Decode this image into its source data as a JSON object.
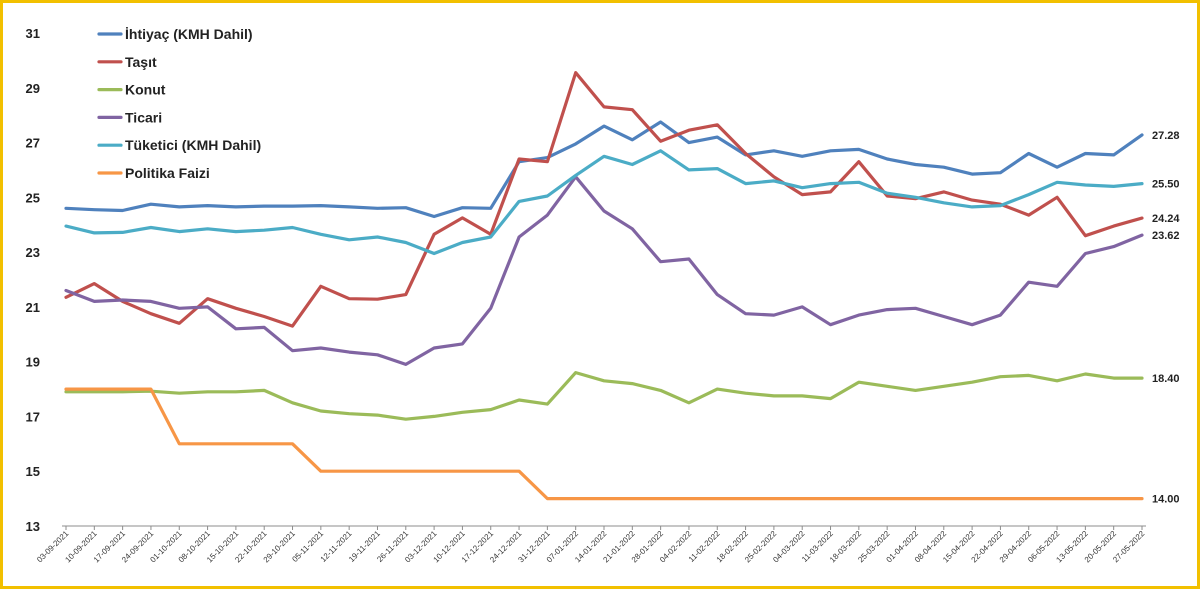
{
  "chart_data": {
    "type": "line",
    "title": "",
    "xlabel": "",
    "ylabel": "",
    "ylim": [
      13,
      31
    ],
    "yticks": [
      13,
      15,
      17,
      19,
      21,
      23,
      25,
      27,
      29,
      31
    ],
    "grid": false,
    "legend_position": "top-left",
    "x": [
      "03-09-2021",
      "10-09-2021",
      "17-09-2021",
      "24-09-2021",
      "01-10-2021",
      "08-10-2021",
      "15-10-2021",
      "22-10-2021",
      "29-10-2021",
      "05-11-2021",
      "12-11-2021",
      "19-11-2021",
      "26-11-2021",
      "03-12-2021",
      "10-12-2021",
      "17-12-2021",
      "24-12-2021",
      "31-12-2021",
      "07-01-2022",
      "14-01-2022",
      "21-01-2022",
      "28-01-2022",
      "04-02-2022",
      "11-02-2022",
      "18-02-2022",
      "25-02-2022",
      "04-03-2022",
      "11-03-2022",
      "18-03-2022",
      "25-03-2022",
      "01-04-2022",
      "08-04-2022",
      "15-04-2022",
      "22-04-2022",
      "29-04-2022",
      "06-05-2022",
      "13-05-2022",
      "20-05-2022",
      "27-05-2022"
    ],
    "series": [
      {
        "name": "İhtiyaç (KMH Dahil)",
        "color": "#4F81BD",
        "end_label": "27.28",
        "values": [
          24.6,
          24.55,
          24.52,
          24.75,
          24.65,
          24.7,
          24.65,
          24.68,
          24.68,
          24.7,
          24.65,
          24.6,
          24.62,
          24.3,
          24.62,
          24.6,
          26.3,
          26.45,
          26.95,
          27.6,
          27.1,
          27.75,
          27.0,
          27.2,
          26.55,
          26.7,
          26.5,
          26.7,
          26.75,
          26.4,
          26.2,
          26.1,
          25.85,
          25.9,
          26.6,
          26.1,
          26.6,
          26.55,
          27.28
        ]
      },
      {
        "name": "Taşıt",
        "color": "#C0504D",
        "end_label": "24.24",
        "values": [
          21.35,
          21.85,
          21.2,
          20.75,
          20.4,
          21.3,
          20.95,
          20.65,
          20.3,
          21.75,
          21.3,
          21.28,
          21.45,
          23.65,
          24.25,
          23.65,
          26.4,
          26.3,
          29.55,
          28.3,
          28.2,
          27.05,
          27.45,
          27.65,
          26.6,
          25.75,
          25.1,
          25.2,
          26.3,
          25.05,
          24.95,
          25.2,
          24.9,
          24.75,
          24.35,
          25.0,
          23.6,
          23.95,
          24.24
        ]
      },
      {
        "name": "Konut",
        "color": "#9BBB59",
        "end_label": "18.40",
        "values": [
          17.9,
          17.9,
          17.9,
          17.92,
          17.85,
          17.9,
          17.9,
          17.95,
          17.5,
          17.2,
          17.1,
          17.05,
          16.9,
          17.0,
          17.15,
          17.25,
          17.6,
          17.45,
          18.6,
          18.3,
          18.2,
          17.95,
          17.5,
          18.0,
          17.85,
          17.75,
          17.75,
          17.65,
          18.25,
          18.1,
          17.95,
          18.1,
          18.25,
          18.45,
          18.5,
          18.3,
          18.55,
          18.4,
          18.4
        ]
      },
      {
        "name": "Ticari",
        "color": "#8064A2",
        "end_label": "23.62",
        "values": [
          21.6,
          21.2,
          21.25,
          21.2,
          20.95,
          21.0,
          20.2,
          20.25,
          19.4,
          19.5,
          19.35,
          19.25,
          18.9,
          19.5,
          19.65,
          20.95,
          23.55,
          24.35,
          25.75,
          24.5,
          23.85,
          22.65,
          22.75,
          21.45,
          20.75,
          20.7,
          21.0,
          20.35,
          20.7,
          20.9,
          20.95,
          20.65,
          20.35,
          20.7,
          21.9,
          21.75,
          22.95,
          23.2,
          23.62
        ]
      },
      {
        "name": "Tüketici (KMH Dahil)",
        "color": "#4BACC6",
        "end_label": "25.50",
        "values": [
          23.95,
          23.7,
          23.72,
          23.9,
          23.75,
          23.85,
          23.75,
          23.8,
          23.9,
          23.65,
          23.45,
          23.55,
          23.35,
          22.95,
          23.35,
          23.55,
          24.85,
          25.05,
          25.8,
          26.5,
          26.2,
          26.7,
          26.0,
          26.05,
          25.5,
          25.6,
          25.35,
          25.5,
          25.55,
          25.15,
          25.0,
          24.8,
          24.65,
          24.7,
          25.1,
          25.55,
          25.45,
          25.4,
          25.5
        ]
      },
      {
        "name": "Politika Faizi",
        "color": "#F79646",
        "end_label": "14.00",
        "values": [
          18,
          18,
          18,
          18,
          16,
          16,
          16,
          16,
          16,
          15,
          15,
          15,
          15,
          15,
          15,
          15,
          15,
          14,
          14,
          14,
          14,
          14,
          14,
          14,
          14,
          14,
          14,
          14,
          14,
          14,
          14,
          14,
          14,
          14,
          14,
          14,
          14,
          14,
          14
        ]
      }
    ]
  }
}
